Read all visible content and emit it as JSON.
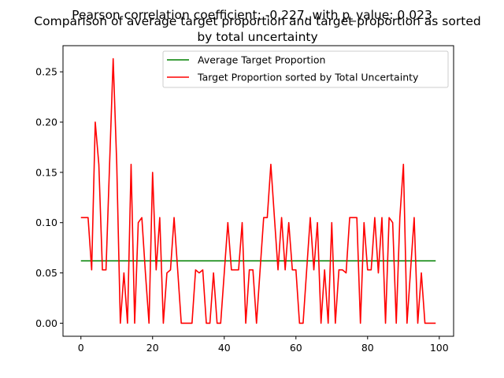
{
  "chart_data": {
    "type": "line",
    "suptitle": "Pearson correlation coefficient: -0.227, with p_value: 0.023",
    "title_line1": "Comparison of average target proportion and target proportion as sorted",
    "title_line2": "by total uncertainty",
    "xlabel": "",
    "ylabel": "",
    "xlim": [
      -5,
      104
    ],
    "ylim": [
      -0.013,
      0.276
    ],
    "xticks": [
      0,
      20,
      40,
      60,
      80,
      100
    ],
    "yticks": [
      0.0,
      0.05,
      0.1,
      0.15,
      0.2,
      0.25
    ],
    "xtick_labels": [
      "0",
      "20",
      "40",
      "60",
      "80",
      "100"
    ],
    "ytick_labels": [
      "0.00",
      "0.05",
      "0.10",
      "0.15",
      "0.20",
      "0.25"
    ],
    "grid": false,
    "legend_position": "top-right",
    "series": [
      {
        "name": "Average Target Proportion",
        "color": "#008000",
        "x": [
          0,
          99
        ],
        "y": [
          0.062,
          0.062
        ]
      },
      {
        "name": "Target Proportion sorted by Total Uncertainty",
        "color": "#ff0000",
        "x": [
          0,
          1,
          2,
          3,
          4,
          5,
          6,
          7,
          8,
          9,
          10,
          11,
          12,
          13,
          14,
          15,
          16,
          17,
          18,
          19,
          20,
          21,
          22,
          23,
          24,
          25,
          26,
          27,
          28,
          29,
          30,
          31,
          32,
          33,
          34,
          35,
          36,
          37,
          38,
          39,
          40,
          41,
          42,
          43,
          44,
          45,
          46,
          47,
          48,
          49,
          50,
          51,
          52,
          53,
          54,
          55,
          56,
          57,
          58,
          59,
          60,
          61,
          62,
          63,
          64,
          65,
          66,
          67,
          68,
          69,
          70,
          71,
          72,
          73,
          74,
          75,
          76,
          77,
          78,
          79,
          80,
          81,
          82,
          83,
          84,
          85,
          86,
          87,
          88,
          89,
          90,
          91,
          92,
          93,
          94,
          95,
          96,
          97,
          98,
          99
        ],
        "y": [
          0.105,
          0.105,
          0.105,
          0.053,
          0.2,
          0.158,
          0.053,
          0.053,
          0.158,
          0.263,
          0.158,
          0.0,
          0.05,
          0.0,
          0.158,
          0.0,
          0.1,
          0.105,
          0.05,
          0.0,
          0.15,
          0.053,
          0.105,
          0.0,
          0.05,
          0.053,
          0.105,
          0.053,
          0.0,
          0.0,
          0.0,
          0.0,
          0.053,
          0.05,
          0.053,
          0.0,
          0.0,
          0.05,
          0.0,
          0.0,
          0.05,
          0.1,
          0.053,
          0.053,
          0.053,
          0.1,
          0.0,
          0.053,
          0.053,
          0.0,
          0.053,
          0.105,
          0.105,
          0.158,
          0.105,
          0.053,
          0.105,
          0.053,
          0.1,
          0.053,
          0.053,
          0.0,
          0.0,
          0.053,
          0.105,
          0.053,
          0.1,
          0.0,
          0.053,
          0.0,
          0.1,
          0.0,
          0.053,
          0.053,
          0.05,
          0.105,
          0.105,
          0.105,
          0.0,
          0.1,
          0.053,
          0.053,
          0.105,
          0.05,
          0.105,
          0.0,
          0.105,
          0.1,
          0.0,
          0.105,
          0.158,
          0.0,
          0.053,
          0.105,
          0.0,
          0.05,
          0.0,
          0.0,
          0.0,
          0.0
        ]
      }
    ]
  }
}
